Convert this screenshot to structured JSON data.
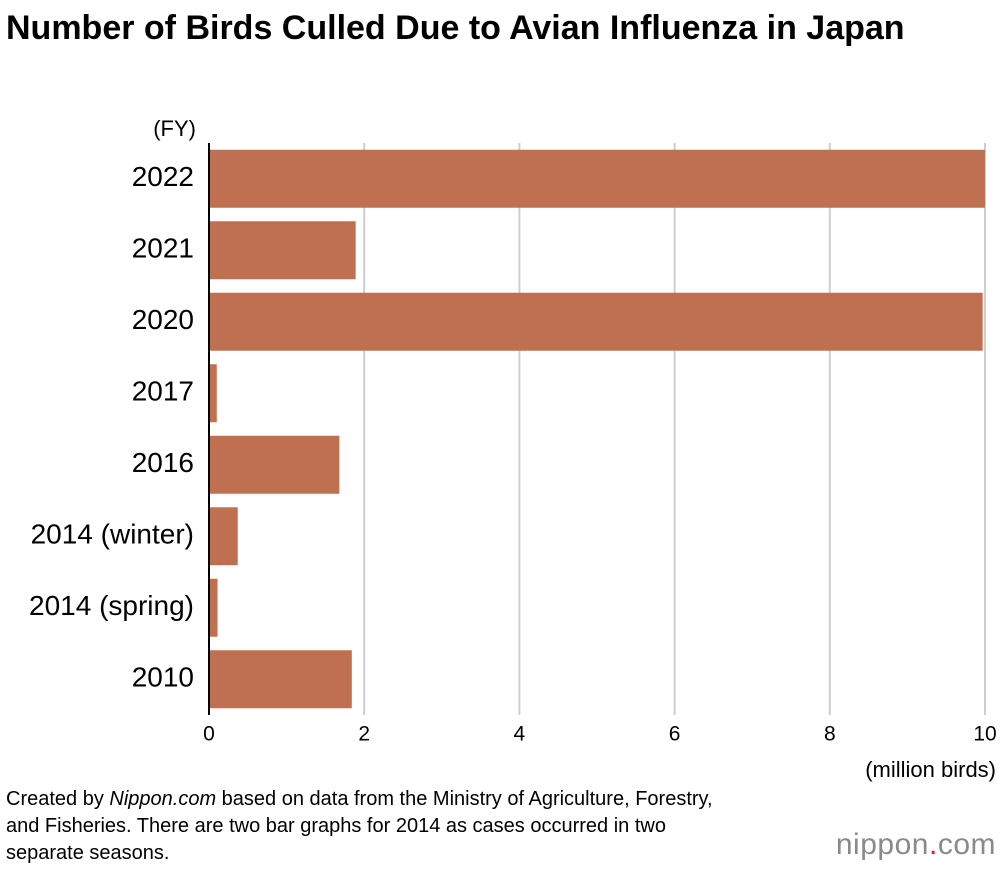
{
  "chart_data": {
    "type": "bar",
    "orientation": "horizontal",
    "title": "Number of Birds Culled Due to Avian Influenza in Japan",
    "y_label": "(FY)",
    "x_label": "(million birds)",
    "categories": [
      "2022",
      "2021",
      "2020",
      "2017",
      "2016",
      "2014 (winter)",
      "2014 (spring)",
      "2010"
    ],
    "values": [
      10,
      1.89,
      9.97,
      0.1,
      1.68,
      0.37,
      0.11,
      1.84
    ],
    "color": "#bf7050",
    "xlim": [
      0,
      10
    ],
    "xticks": [
      0,
      2,
      4,
      6,
      8,
      10
    ],
    "grid": true
  },
  "source": {
    "prefix": "Created by ",
    "italic": "Nippon.com",
    "rest": " based on data from the Ministry of Agriculture, Forestry, and Fisheries. There are two bar graphs for 2014 as cases occurred in two separate seasons."
  },
  "logo": {
    "name": "nippon",
    "dot": ".",
    "suffix": "com"
  }
}
